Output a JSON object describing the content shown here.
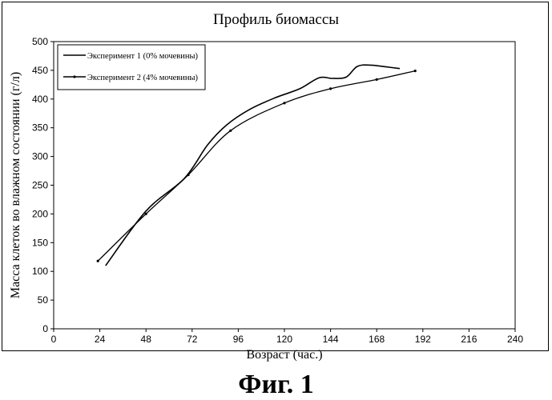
{
  "figure": {
    "title": "Профиль биомассы",
    "caption": "Фиг. 1"
  },
  "chart_data": {
    "type": "line",
    "title": "Профиль биомассы",
    "xlabel": "Возраст (час.)",
    "ylabel": "Масса клеток во влажном состоянии (г/л)",
    "xlim": [
      0,
      240
    ],
    "ylim": [
      0,
      500
    ],
    "x_ticks": [
      0,
      24,
      48,
      72,
      96,
      120,
      144,
      168,
      192,
      216,
      240
    ],
    "y_ticks": [
      0,
      50,
      100,
      150,
      200,
      250,
      300,
      350,
      400,
      450,
      500
    ],
    "grid": false,
    "legend_position": "top-left",
    "series": [
      {
        "name": "Эксперимент 1 (0% мочевины)",
        "x": [
          27,
          48,
          68,
          80,
          90,
          102,
          115,
          128,
          138,
          145,
          152,
          158,
          165,
          173,
          180
        ],
        "y": [
          110,
          205,
          262,
          320,
          355,
          382,
          402,
          418,
          437,
          436,
          438,
          457,
          459,
          456,
          453
        ]
      },
      {
        "name": "Эксперимент 2 (4% мочевины)",
        "x": [
          23,
          48,
          70,
          92,
          120,
          144,
          168,
          188
        ],
        "y": [
          118,
          200,
          268,
          345,
          393,
          418,
          434,
          449
        ]
      }
    ]
  }
}
